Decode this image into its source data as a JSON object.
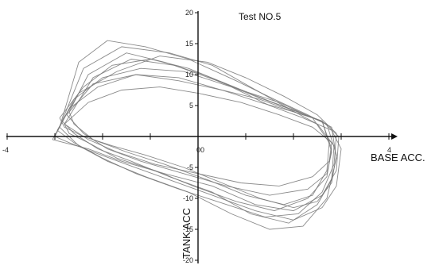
{
  "chart_data": {
    "type": "line",
    "title": "Test NO.5",
    "xlabel": "BASE ACC.",
    "ylabel": "TANK ACC",
    "xlim": [
      -4.2,
      4.6
    ],
    "ylim": [
      -20.5,
      20.5
    ],
    "x_ticks": [
      -4,
      -3,
      -2,
      -1,
      0,
      1,
      2,
      3,
      4
    ],
    "x_tick_labels": [
      "-4",
      "",
      "",
      "",
      "0",
      "",
      "",
      "",
      "4"
    ],
    "y_ticks": [
      -20,
      -15,
      -10,
      -5,
      0,
      5,
      10,
      15,
      20
    ],
    "y_tick_labels": [
      "-20",
      "-15",
      "-10",
      "-5",
      "0",
      "5",
      "10",
      "15",
      "20"
    ],
    "grid": false,
    "series": [
      {
        "description_free": true,
        "x": [
          -2.9,
          -2.4,
          -1.8,
          -1.0,
          -0.2,
          0.6,
          1.4,
          2.1,
          2.7,
          2.9,
          2.8,
          2.5,
          2.0,
          1.3,
          0.5,
          -0.3,
          -1.1,
          -1.8,
          -2.4,
          -2.8,
          -2.9
        ],
        "y": [
          3.0,
          8.0,
          11.5,
          12.5,
          11.0,
          8.5,
          6.0,
          4.0,
          2.0,
          -3.0,
          -7.5,
          -10.5,
          -11.5,
          -10.0,
          -7.5,
          -5.0,
          -3.0,
          -1.5,
          0.0,
          1.5,
          3.0
        ]
      },
      {
        "x": [
          -2.8,
          -2.2,
          -1.4,
          -0.5,
          0.4,
          1.2,
          1.9,
          2.6,
          2.8,
          2.7,
          2.3,
          1.6,
          0.8,
          -0.1,
          -0.9,
          -1.7,
          -2.3,
          -2.7,
          -2.8
        ],
        "y": [
          2.0,
          9.5,
          12.5,
          11.5,
          9.0,
          6.5,
          4.5,
          2.5,
          -2.0,
          -6.5,
          -10.0,
          -12.0,
          -10.5,
          -8.0,
          -5.5,
          -3.5,
          -1.0,
          0.5,
          2.0
        ]
      },
      {
        "x": [
          -2.95,
          -2.5,
          -1.7,
          -0.8,
          0.2,
          1.0,
          1.8,
          2.5,
          2.9,
          2.85,
          2.6,
          2.1,
          1.4,
          0.6,
          -0.4,
          -1.3,
          -2.0,
          -2.6,
          -2.95
        ],
        "y": [
          1.0,
          7.0,
          10.5,
          13.0,
          12.0,
          9.5,
          6.5,
          3.5,
          0.5,
          -4.5,
          -9.0,
          -12.5,
          -13.0,
          -11.0,
          -8.5,
          -6.0,
          -3.5,
          -1.0,
          1.0
        ]
      },
      {
        "x": [
          -2.7,
          -2.3,
          -1.5,
          -0.7,
          0.1,
          0.9,
          1.7,
          2.4,
          2.75,
          2.7,
          2.4,
          1.8,
          1.0,
          0.2,
          -0.7,
          -1.5,
          -2.2,
          -2.6,
          -2.7
        ],
        "y": [
          4.0,
          10.0,
          13.5,
          12.0,
          10.0,
          7.5,
          5.5,
          3.0,
          -1.0,
          -5.5,
          -9.5,
          -11.0,
          -9.5,
          -7.0,
          -4.5,
          -2.5,
          -0.5,
          2.0,
          4.0
        ]
      },
      {
        "x": [
          -3.0,
          -2.6,
          -2.0,
          -1.2,
          -0.3,
          0.7,
          1.5,
          2.2,
          2.8,
          3.0,
          2.9,
          2.6,
          2.0,
          1.2,
          0.3,
          -0.6,
          -1.5,
          -2.2,
          -2.7,
          -3.0
        ],
        "y": [
          0.0,
          6.0,
          9.5,
          11.0,
          10.5,
          8.0,
          5.0,
          3.0,
          1.0,
          -2.0,
          -8.0,
          -11.5,
          -13.5,
          -12.0,
          -9.5,
          -7.0,
          -4.5,
          -2.5,
          -1.0,
          0.0
        ]
      },
      {
        "x": [
          -2.85,
          -2.4,
          -1.6,
          -0.6,
          0.3,
          1.1,
          1.9,
          2.5,
          2.85,
          2.8,
          2.5,
          1.9,
          1.1,
          0.3,
          -0.6,
          -1.4,
          -2.1,
          -2.6,
          -2.85
        ],
        "y": [
          2.5,
          11.0,
          14.5,
          13.5,
          11.5,
          8.0,
          4.5,
          2.0,
          -1.5,
          -7.0,
          -11.0,
          -14.0,
          -12.5,
          -9.0,
          -6.5,
          -4.0,
          -2.0,
          0.5,
          2.5
        ]
      },
      {
        "x": [
          -2.75,
          -2.2,
          -1.3,
          -0.4,
          0.5,
          1.3,
          2.0,
          2.6,
          2.8,
          2.7,
          2.3,
          1.5,
          0.6,
          -0.3,
          -1.2,
          -1.9,
          -2.4,
          -2.75
        ],
        "y": [
          3.5,
          8.5,
          10.0,
          9.0,
          7.5,
          6.0,
          4.0,
          2.5,
          -2.5,
          -6.0,
          -8.5,
          -9.5,
          -8.0,
          -6.0,
          -4.0,
          -2.0,
          0.5,
          3.5
        ]
      },
      {
        "x": [
          -2.9,
          -2.5,
          -1.9,
          -1.1,
          -0.2,
          0.8,
          1.6,
          2.3,
          2.8,
          2.9,
          2.7,
          2.2,
          1.5,
          0.7,
          -0.2,
          -1.1,
          -1.9,
          -2.5,
          -2.9
        ],
        "y": [
          1.5,
          12.0,
          15.5,
          14.5,
          12.5,
          9.0,
          6.0,
          3.5,
          1.5,
          -3.5,
          -10.0,
          -14.5,
          -15.0,
          -12.5,
          -9.0,
          -6.5,
          -4.0,
          -1.5,
          1.5
        ]
      },
      {
        "x": [
          -2.8,
          -2.3,
          -1.6,
          -0.8,
          0.0,
          0.9,
          1.7,
          2.4,
          2.8,
          2.75,
          2.4,
          1.7,
          0.9,
          0.0,
          -0.9,
          -1.7,
          -2.3,
          -2.8
        ],
        "y": [
          2.0,
          5.5,
          7.5,
          8.0,
          7.0,
          5.5,
          3.5,
          1.5,
          -1.0,
          -4.0,
          -6.5,
          -8.0,
          -7.5,
          -6.0,
          -4.5,
          -2.5,
          -0.5,
          2.0
        ]
      },
      {
        "x": [
          -3.05,
          -2.7,
          -2.1,
          -1.3,
          -0.4,
          0.5,
          1.3,
          2.0,
          2.6,
          2.95,
          2.9,
          2.6,
          2.0,
          1.2,
          0.3,
          -0.7,
          -1.6,
          -2.3,
          -2.8,
          -3.05
        ],
        "y": [
          -0.5,
          4.5,
          8.0,
          10.0,
          9.5,
          7.5,
          5.5,
          4.0,
          2.5,
          0.0,
          -5.5,
          -9.5,
          -12.0,
          -11.0,
          -8.0,
          -6.0,
          -4.0,
          -2.0,
          -1.0,
          -0.5
        ]
      }
    ]
  }
}
